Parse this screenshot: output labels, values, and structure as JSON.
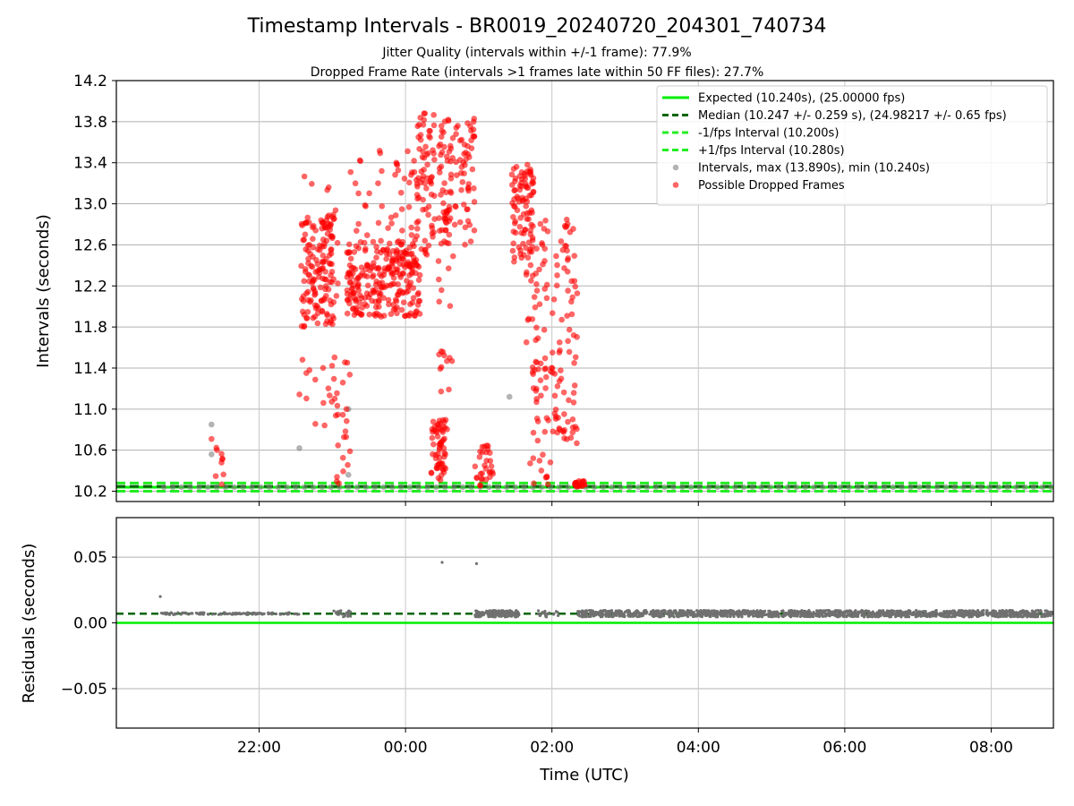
{
  "figure": {
    "title": "Timestamp Intervals - BR0019_20240720_204301_740734",
    "subtitle_1": "Jitter Quality (intervals within +/-1 frame): 77.9%",
    "subtitle_2": "Dropped Frame Rate (intervals >1 frames late within 50 FF files): 27.7%"
  },
  "chart_data": [
    {
      "type": "scatter",
      "xlabel": "",
      "ylabel": "Intervals (seconds)",
      "x_unit": "hours since 00:00 UTC (negative = previous day)",
      "xlim": [
        -3.95,
        8.85
      ],
      "ylim": [
        10.1,
        14.2
      ],
      "y_ticks": [
        "10.2",
        "10.6",
        "11.0",
        "11.4",
        "11.8",
        "12.2",
        "12.6",
        "13.0",
        "13.4",
        "13.8",
        "14.2"
      ],
      "y_tick_values": [
        10.2,
        10.6,
        11.0,
        11.4,
        11.8,
        12.2,
        12.6,
        13.0,
        13.4,
        13.8,
        14.2
      ],
      "x_tick_values": [
        -2,
        0,
        2,
        4,
        6,
        8
      ],
      "grid": true,
      "legend_position": "top-right",
      "lines": [
        {
          "name": "Expected (10.240s), (25.00000 fps)",
          "y": 10.24,
          "color": "#00ee00",
          "style": "solid"
        },
        {
          "name": "Median (10.247 +/- 0.259 s), (24.98217 +/- 0.65 fps)",
          "y": 10.247,
          "color": "#006400",
          "style": "dashed"
        },
        {
          "name": "-1/fps Interval (10.200s)",
          "y": 10.2,
          "color": "#22ee22",
          "style": "dashed"
        },
        {
          "name": "+1/fps Interval (10.280s)",
          "y": 10.28,
          "color": "#22ee22",
          "style": "dashed"
        }
      ],
      "scatter_series": [
        {
          "name": "Intervals, max (13.890s), min (10.240s)",
          "color": "#808080",
          "sample_points": [
            [
              -2.65,
              10.85
            ],
            [
              -2.65,
              10.56
            ],
            [
              -1.45,
              10.62
            ],
            [
              -0.78,
              11.0
            ],
            [
              -0.78,
              10.36
            ],
            [
              1.42,
              11.12
            ]
          ],
          "baseline_y": 10.24,
          "baseline_x_range": [
            -3.3,
            8.85
          ]
        },
        {
          "name": "Possible Dropped Frames",
          "color": "#ff0000",
          "clusters": [
            {
              "x_range": [
                -2.65,
                -2.45
              ],
              "y_range": [
                10.24,
                10.75
              ],
              "n": 10
            },
            {
              "x_range": [
                -1.42,
                -0.98
              ],
              "y_range": [
                11.8,
                12.9
              ],
              "n": 140
            },
            {
              "x_range": [
                -1.45,
                -0.9
              ],
              "y_range": [
                10.8,
                13.4
              ],
              "n": 40
            },
            {
              "x_range": [
                -0.95,
                -0.75
              ],
              "y_range": [
                10.24,
                11.5
              ],
              "n": 20
            },
            {
              "x_range": [
                -0.8,
                0.2
              ],
              "y_range": [
                11.9,
                12.65
              ],
              "n": 260
            },
            {
              "x_range": [
                -0.75,
                0.2
              ],
              "y_range": [
                12.65,
                13.55
              ],
              "n": 40
            },
            {
              "x_range": [
                0.15,
                0.4
              ],
              "y_range": [
                12.5,
                13.9
              ],
              "n": 70
            },
            {
              "x_range": [
                0.35,
                0.55
              ],
              "y_range": [
                10.3,
                10.9
              ],
              "n": 60
            },
            {
              "x_range": [
                0.45,
                0.65
              ],
              "y_range": [
                10.8,
                12.5
              ],
              "n": 20
            },
            {
              "x_range": [
                0.45,
                0.95
              ],
              "y_range": [
                12.6,
                13.85
              ],
              "n": 110
            },
            {
              "x_range": [
                0.95,
                1.2
              ],
              "y_range": [
                10.24,
                10.65
              ],
              "n": 30
            },
            {
              "x_range": [
                1.45,
                1.75
              ],
              "y_range": [
                12.4,
                13.4
              ],
              "n": 90
            },
            {
              "x_range": [
                1.65,
                1.95
              ],
              "y_range": [
                11.4,
                12.9
              ],
              "n": 40
            },
            {
              "x_range": [
                1.7,
                2.0
              ],
              "y_range": [
                10.24,
                11.5
              ],
              "n": 35
            },
            {
              "x_range": [
                2.0,
                2.35
              ],
              "y_range": [
                10.6,
                12.9
              ],
              "n": 80
            },
            {
              "x_range": [
                2.3,
                2.45
              ],
              "y_range": [
                10.24,
                10.3
              ],
              "n": 20
            }
          ]
        }
      ]
    },
    {
      "type": "scatter",
      "xlabel": "Time (UTC)",
      "ylabel": "Residuals (seconds)",
      "xlim": [
        -3.95,
        8.85
      ],
      "ylim": [
        -0.08,
        0.08
      ],
      "y_ticks": [
        "0.05",
        "0.00",
        "−0.05"
      ],
      "y_tick_values": [
        0.05,
        0.0,
        -0.05
      ],
      "x_ticks": [
        "22:00",
        "00:00",
        "02:00",
        "04:00",
        "06:00",
        "08:00"
      ],
      "x_tick_values": [
        -2,
        0,
        2,
        4,
        6,
        8
      ],
      "grid": true,
      "lines": [
        {
          "y": 0.0,
          "color": "#00ee00",
          "style": "solid"
        },
        {
          "y": 0.007,
          "color": "#006400",
          "style": "dashed"
        }
      ],
      "series": {
        "color": "#707070",
        "baseline": 0.007,
        "segments": [
          {
            "x_range": [
              -3.35,
              -1.45
            ],
            "jitter": 0.0008,
            "n": 120
          },
          {
            "x_range": [
              -0.98,
              -0.75
            ],
            "jitter": 0.0025,
            "n": 30
          },
          {
            "x_range": [
              0.95,
              1.55
            ],
            "jitter": 0.0025,
            "n": 150
          },
          {
            "x_range": [
              1.7,
              2.1
            ],
            "jitter": 0.0025,
            "n": 20
          },
          {
            "x_range": [
              2.35,
              8.85
            ],
            "jitter": 0.0025,
            "n": 1400
          }
        ],
        "outliers": [
          [
            -3.35,
            0.02
          ],
          [
            0.5,
            0.046
          ],
          [
            0.97,
            0.045
          ]
        ]
      }
    }
  ],
  "legend": [
    {
      "label": "Expected (10.240s), (25.00000 fps)",
      "kind": "line",
      "color": "#00ee00",
      "dash": false
    },
    {
      "label": "Median (10.247 +/- 0.259 s), (24.98217 +/- 0.65 fps)",
      "kind": "line",
      "color": "#006400",
      "dash": true
    },
    {
      "label": "-1/fps Interval (10.200s)",
      "kind": "line",
      "color": "#22ee22",
      "dash": true
    },
    {
      "label": "+1/fps Interval (10.280s)",
      "kind": "line",
      "color": "#22ee22",
      "dash": true
    },
    {
      "label": "Intervals, max (13.890s), min (10.240s)",
      "kind": "dot",
      "color": "#808080"
    },
    {
      "label": "Possible Dropped Frames",
      "kind": "dot",
      "color": "#ff0000"
    }
  ]
}
